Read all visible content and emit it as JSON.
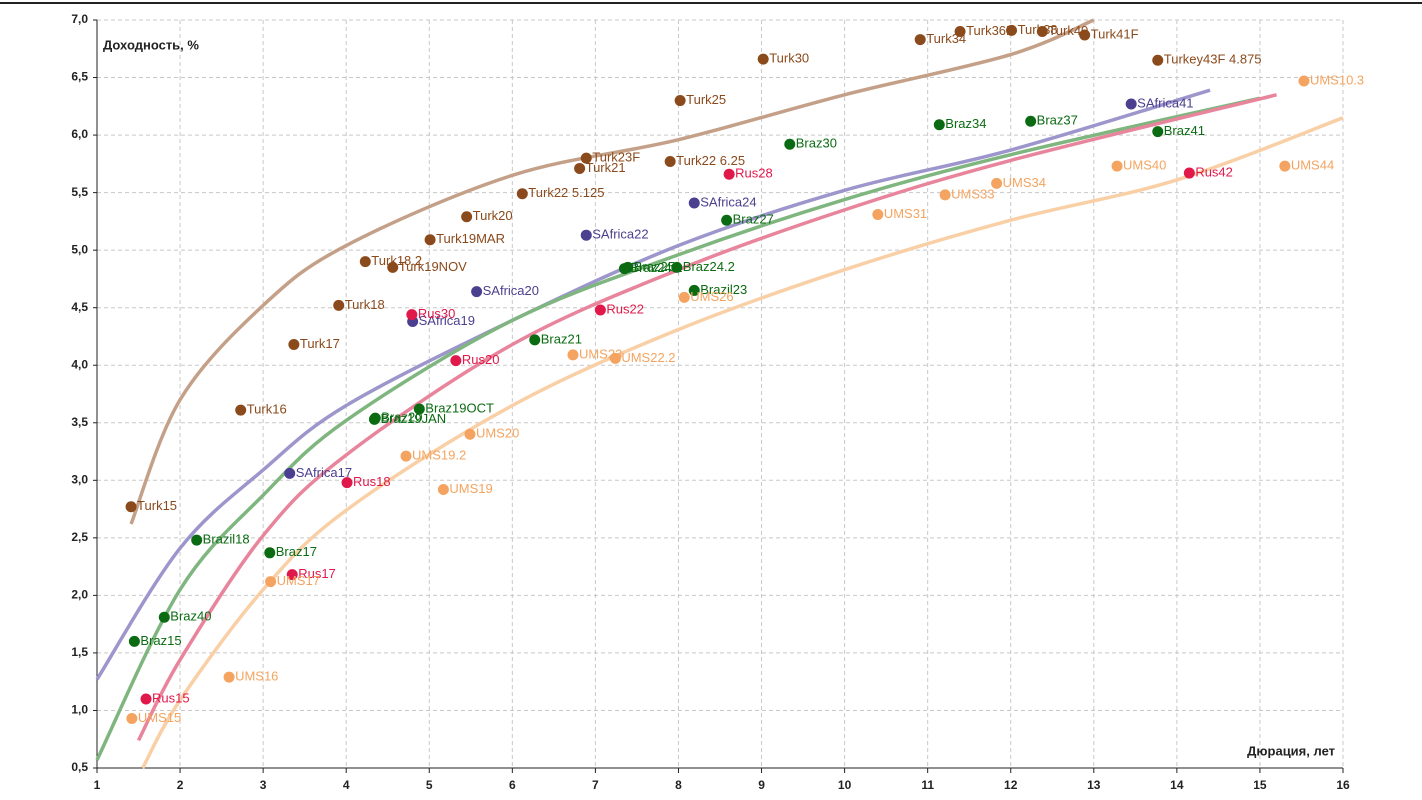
{
  "chart_data": {
    "type": "scatter",
    "x_label": "Дюрация, лет",
    "y_label": "Доходность, %",
    "xlim": [
      1,
      16
    ],
    "xticks": [
      1,
      2,
      3,
      4,
      5,
      6,
      7,
      8,
      9,
      10,
      11,
      12,
      13,
      14,
      15,
      16
    ],
    "ylim": [
      0.5,
      7.0
    ],
    "yticks": [
      {
        "value": 0.5,
        "label": "0,5"
      },
      {
        "value": 1.0,
        "label": "1,0"
      },
      {
        "value": 1.5,
        "label": "1,5"
      },
      {
        "value": 2.0,
        "label": "2,0"
      },
      {
        "value": 2.5,
        "label": "2,5"
      },
      {
        "value": 3.0,
        "label": "3,0"
      },
      {
        "value": 3.5,
        "label": "3,5"
      },
      {
        "value": 4.0,
        "label": "4,0"
      },
      {
        "value": 4.5,
        "label": "4,5"
      },
      {
        "value": 5.0,
        "label": "5,0"
      },
      {
        "value": 5.5,
        "label": "5,5"
      },
      {
        "value": 6.0,
        "label": "6,0"
      },
      {
        "value": 6.5,
        "label": "6,5"
      },
      {
        "value": 7.0,
        "label": "7,0"
      }
    ],
    "grid": true,
    "series": [
      {
        "color": "#8b4a1c",
        "labels": [
          "Turk15",
          "Turk16",
          "Turk17",
          "Turk18",
          "Turk18.2",
          "Turk19NOV",
          "Turk19MAR",
          "Turk20",
          "Turk22 5.125",
          "Turk21",
          "Turk23F",
          "Turk22 6.25",
          "Turk25",
          "Turk30",
          "Turk34",
          "Turk36F",
          "Turk38",
          "Turk40",
          "Turk41F",
          "Turkey43F 4.875"
        ],
        "x": [
          1.41,
          2.73,
          3.37,
          3.91,
          4.23,
          4.56,
          5.01,
          5.45,
          6.12,
          6.81,
          6.89,
          7.9,
          8.02,
          9.02,
          10.91,
          11.39,
          12.01,
          12.38,
          12.89,
          13.77
        ],
        "values": [
          2.77,
          3.61,
          4.18,
          4.52,
          4.9,
          4.85,
          5.09,
          5.29,
          5.49,
          5.71,
          5.8,
          5.77,
          6.3,
          6.66,
          6.83,
          6.9,
          6.91,
          6.9,
          6.87,
          6.65
        ]
      },
      {
        "color": "#0b6b12",
        "labels": [
          "Braz15",
          "Braz40",
          "Brazil18",
          "Braz17",
          "Braz20",
          "Braz19JAN",
          "Braz19OCT",
          "Braz21",
          "Braz24.1",
          "Braz25",
          "Braz24.2",
          "Brazil23",
          "Braz27",
          "Braz30",
          "Braz34",
          "Braz37",
          "Braz41"
        ],
        "x": [
          1.45,
          1.81,
          2.2,
          3.08,
          4.35,
          4.34,
          4.88,
          6.27,
          7.35,
          7.39,
          7.98,
          8.19,
          8.58,
          9.34,
          11.14,
          12.24,
          13.77
        ],
        "values": [
          1.6,
          1.81,
          2.48,
          2.37,
          3.54,
          3.53,
          3.62,
          4.22,
          4.84,
          4.85,
          4.85,
          4.65,
          5.26,
          5.92,
          6.09,
          6.12,
          6.03
        ]
      },
      {
        "color": "#4b3f8f",
        "labels": [
          "SAfrica17",
          "SAfrica19",
          "SAfrica20",
          "SAfrica22",
          "SAfrica24",
          "SAfrica41"
        ],
        "x": [
          3.32,
          4.8,
          5.57,
          6.89,
          8.19,
          13.45
        ],
        "values": [
          3.06,
          4.38,
          4.64,
          5.13,
          5.41,
          6.27
        ]
      },
      {
        "color": "#e0194a",
        "labels": [
          "Rus15",
          "Rus17",
          "Rus18",
          "Rus20",
          "Rus22",
          "Rus30",
          "Rus28",
          "Rus42"
        ],
        "x": [
          1.59,
          3.35,
          4.01,
          5.32,
          7.06,
          4.79,
          8.61,
          14.15
        ],
        "values": [
          1.1,
          2.18,
          2.98,
          4.04,
          4.48,
          4.44,
          5.66,
          5.67
        ]
      },
      {
        "color": "#f4a460",
        "labels": [
          "UMS15",
          "UMS16",
          "UMS17",
          "UMS19.2",
          "UMS19",
          "UMS20",
          "UMS23",
          "UMS22.2",
          "UMS26",
          "UMS31",
          "UMS33",
          "UMS34",
          "UMS40",
          "UMS44",
          "UMS10.3"
        ],
        "x": [
          1.42,
          2.59,
          3.09,
          4.72,
          5.17,
          5.49,
          6.73,
          7.24,
          8.07,
          10.4,
          11.21,
          11.83,
          13.28,
          15.3,
          15.53
        ],
        "values": [
          0.93,
          1.29,
          2.12,
          3.21,
          2.92,
          3.4,
          4.09,
          4.06,
          4.59,
          5.31,
          5.48,
          5.58,
          5.73,
          5.73,
          6.47
        ]
      }
    ],
    "trendlines": [
      {
        "color": "#c4a088",
        "x": [
          1.41,
          2,
          3,
          4,
          6,
          8,
          10,
          12,
          13
        ],
        "y": [
          2.62,
          3.7,
          4.52,
          5.04,
          5.65,
          5.96,
          6.35,
          6.7,
          7.0
        ]
      },
      {
        "color": "#9c96cc",
        "x": [
          1,
          2,
          3,
          4,
          6,
          8,
          10,
          12,
          14.4
        ],
        "y": [
          1.27,
          2.41,
          3.09,
          3.65,
          4.39,
          5.04,
          5.52,
          5.87,
          6.39
        ]
      },
      {
        "color": "#7fb57f",
        "x": [
          1,
          2,
          3,
          4,
          6,
          8,
          10,
          12,
          15
        ],
        "y": [
          0.57,
          2.05,
          2.87,
          3.52,
          4.39,
          4.96,
          5.44,
          5.83,
          6.32
        ]
      },
      {
        "color": "#e8849b",
        "x": [
          1.5,
          2,
          3,
          4,
          6,
          8,
          10,
          12,
          15.2
        ],
        "y": [
          0.74,
          1.44,
          2.52,
          3.22,
          4.18,
          4.83,
          5.35,
          5.78,
          6.35
        ]
      },
      {
        "color": "#f9cfa6",
        "x": [
          1.55,
          2,
          3,
          4,
          6,
          8,
          10,
          12,
          14,
          16
        ],
        "y": [
          0.5,
          1.09,
          2.05,
          2.74,
          3.65,
          4.31,
          4.83,
          5.26,
          5.61,
          6.15
        ]
      }
    ]
  }
}
